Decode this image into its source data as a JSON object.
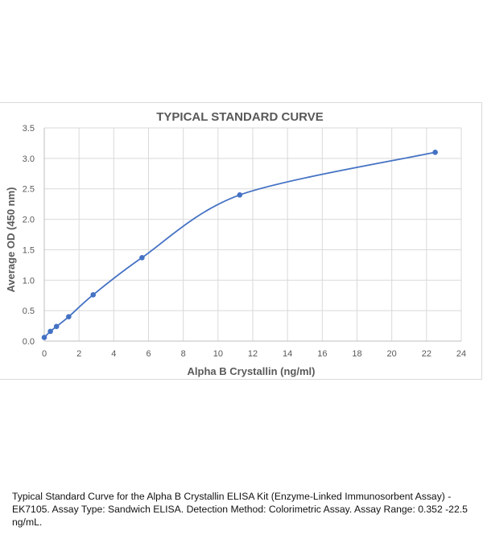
{
  "chart_data": {
    "type": "scatter",
    "title": "TYPICAL STANDARD CURVE",
    "xlabel": "Alpha B Crystallin (ng/ml)",
    "ylabel": "Average OD (450 nm)",
    "xlim": [
      0,
      24
    ],
    "ylim": [
      0,
      3.5
    ],
    "x_ticks": [
      "0",
      "2",
      "4",
      "6",
      "8",
      "10",
      "12",
      "14",
      "16",
      "18",
      "20",
      "22",
      "24"
    ],
    "y_ticks": [
      "0.0",
      "0.5",
      "1.0",
      "1.5",
      "2.0",
      "2.5",
      "3.0",
      "3.5"
    ],
    "grid": true,
    "legend": "none",
    "smooth_line": true,
    "series": [
      {
        "x": [
          0,
          0.352,
          0.703,
          1.406,
          2.813,
          5.625,
          11.25,
          22.5
        ],
        "y": [
          0.06,
          0.16,
          0.24,
          0.4,
          0.76,
          1.37,
          2.4,
          3.1
        ],
        "color": "#4472c4"
      }
    ]
  },
  "caption": "Typical Standard Curve for the Alpha B Crystallin ELISA Kit (Enzyme-Linked Immunosorbent Assay) -EK7105. Assay Type: Sandwich ELISA. Detection Method: Colorimetric Assay. Assay Range: 0.352 -22.5 ng/mL."
}
